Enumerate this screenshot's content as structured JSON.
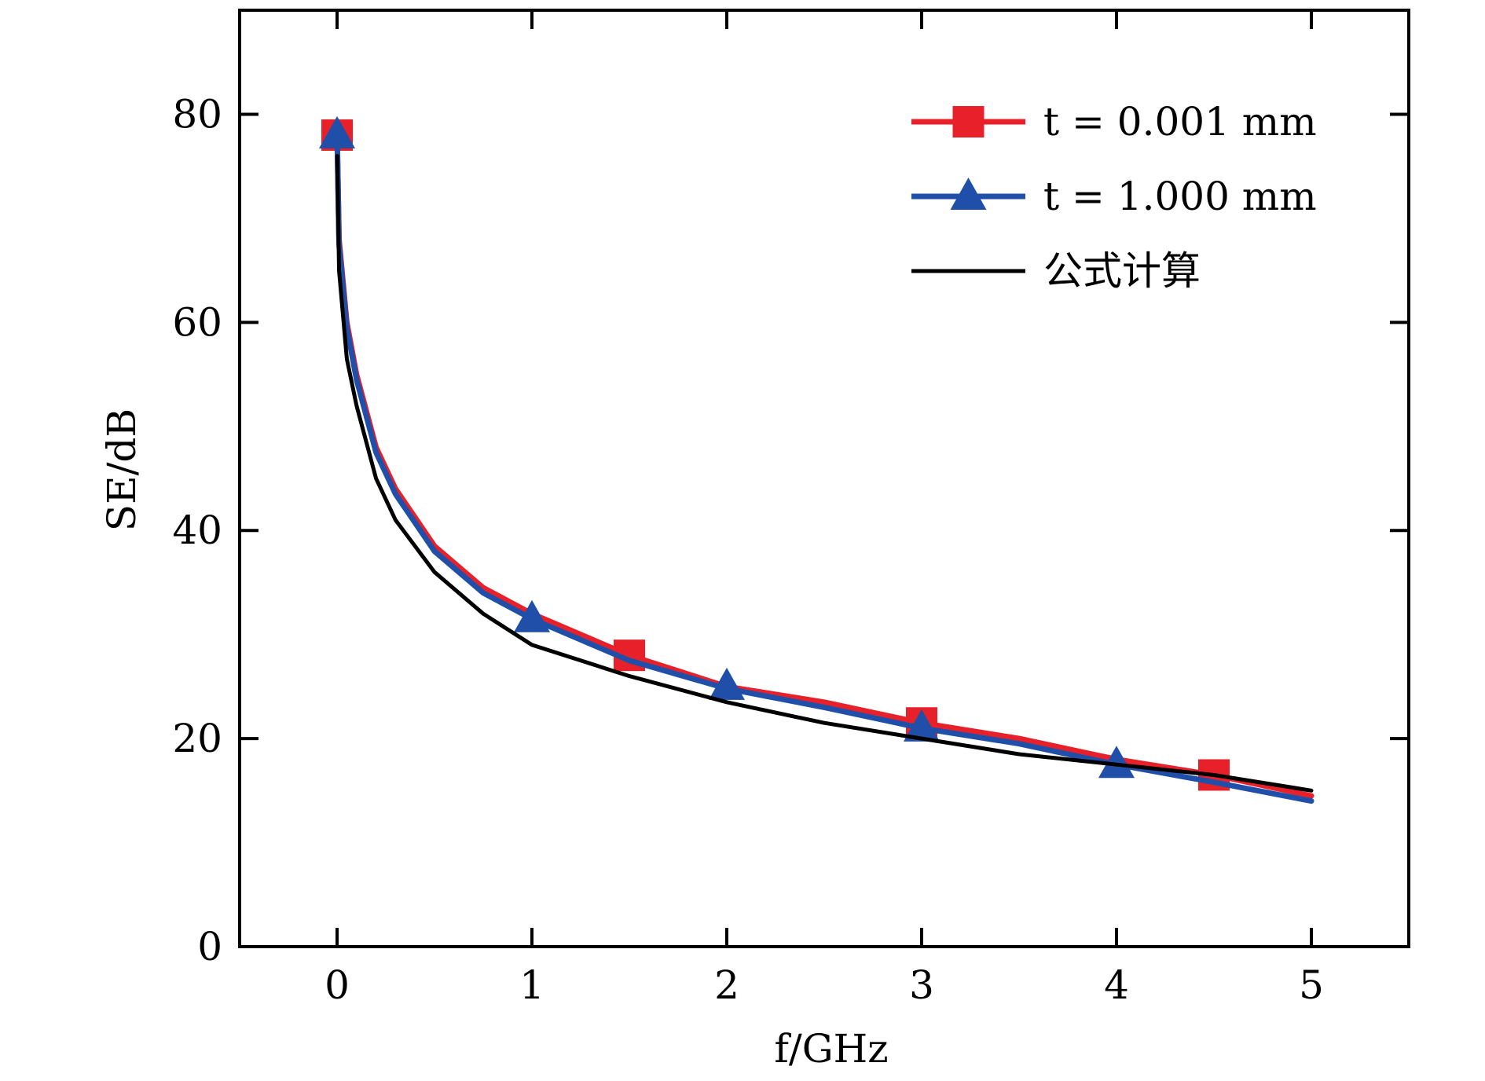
{
  "chart_data": {
    "type": "line",
    "xlabel": "f/GHz",
    "ylabel": "SE/dB",
    "xlim": [
      -0.5,
      5.5
    ],
    "ylim": [
      0,
      90
    ],
    "x_ticks": [
      0,
      1,
      2,
      3,
      4,
      5
    ],
    "y_ticks": [
      0,
      20,
      40,
      60,
      80
    ],
    "x_tick_labels": [
      "0",
      "1",
      "2",
      "3",
      "4",
      "5"
    ],
    "y_tick_labels": [
      "0",
      "20",
      "40",
      "60",
      "80"
    ],
    "grid": false,
    "legend_position": "top-right",
    "series": [
      {
        "name": "t = 0.001 mm",
        "color": "#e8202a",
        "marker": "square",
        "x": [
          0.001,
          0.01,
          0.05,
          0.1,
          0.2,
          0.3,
          0.5,
          0.75,
          1.0,
          1.5,
          2.0,
          2.5,
          3.0,
          3.5,
          4.0,
          4.5,
          5.0
        ],
        "y": [
          77.5,
          68.0,
          60.0,
          55.0,
          48.0,
          44.0,
          38.5,
          34.5,
          32.0,
          28.0,
          25.0,
          23.5,
          21.5,
          20.0,
          18.0,
          16.5,
          14.5
        ],
        "marker_x": [
          0.0,
          1.5,
          3.0,
          4.5
        ],
        "marker_y": [
          78.0,
          28.0,
          21.5,
          16.5
        ]
      },
      {
        "name": "t = 1.000 mm",
        "color": "#1f4fa8",
        "marker": "triangle",
        "x": [
          0.001,
          0.01,
          0.05,
          0.1,
          0.2,
          0.3,
          0.5,
          0.75,
          1.0,
          1.5,
          2.0,
          2.5,
          3.0,
          3.5,
          4.0,
          4.5,
          5.0
        ],
        "y": [
          77.5,
          67.5,
          59.5,
          54.5,
          47.5,
          43.5,
          38.0,
          34.0,
          31.5,
          27.5,
          24.8,
          23.0,
          21.0,
          19.5,
          17.5,
          15.8,
          14.0
        ],
        "marker_x": [
          0.0,
          1.0,
          2.0,
          3.0,
          4.0
        ],
        "marker_y": [
          78.0,
          31.5,
          25.0,
          21.0,
          17.5
        ]
      },
      {
        "name": "公式计算",
        "color": "#000000",
        "marker": "none",
        "x": [
          0.001,
          0.01,
          0.05,
          0.1,
          0.2,
          0.3,
          0.5,
          0.75,
          1.0,
          1.5,
          2.0,
          2.5,
          3.0,
          3.5,
          4.0,
          4.5,
          5.0
        ],
        "y": [
          76.0,
          65.0,
          56.5,
          52.0,
          45.0,
          41.0,
          36.0,
          32.0,
          29.0,
          26.0,
          23.5,
          21.5,
          20.0,
          18.5,
          17.5,
          16.5,
          15.0
        ]
      }
    ]
  }
}
